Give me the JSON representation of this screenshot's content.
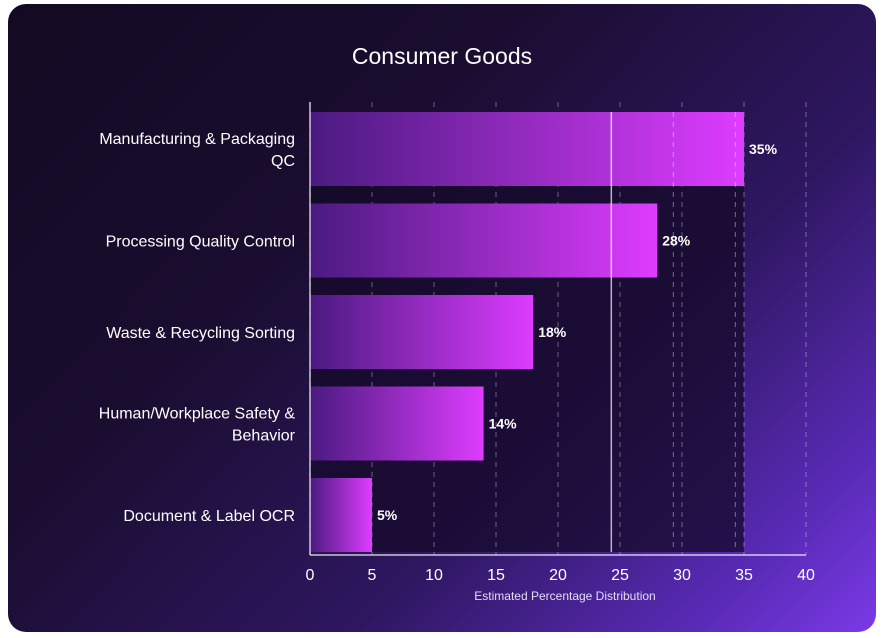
{
  "chart_data": {
    "type": "bar",
    "orientation": "horizontal",
    "title": "Consumer Goods",
    "xlabel": "Estimated Percentage Distribution",
    "ylabel": "",
    "xlim": [
      0,
      40
    ],
    "xticks": [
      0,
      5,
      10,
      15,
      20,
      25,
      30,
      35,
      40
    ],
    "categories": [
      [
        "Manufacturing & Packaging",
        "QC"
      ],
      [
        "Processing Quality Control"
      ],
      [
        "Waste & Recycling Sorting"
      ],
      [
        "Human/Workplace Safety &",
        "Behavior"
      ],
      [
        "Document & Label OCR"
      ]
    ],
    "values": [
      35,
      28,
      18,
      14,
      5
    ],
    "data_labels": [
      "35%",
      "28%",
      "18%",
      "14%",
      "5%"
    ],
    "reference_lines": [
      24.3,
      29.3,
      34.3
    ],
    "grid": true,
    "colors": {
      "bar_start": "#4a1a80",
      "bar_end": "#de3cff",
      "text": "#ffffff",
      "panel": "#160a2a"
    }
  }
}
